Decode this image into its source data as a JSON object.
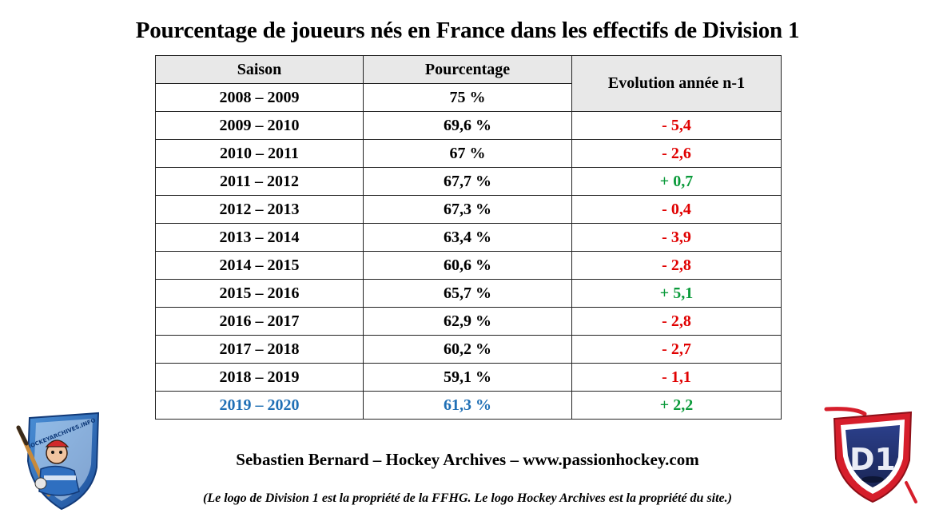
{
  "title": "Pourcentage de joueurs nés en France dans les effectifs de Division 1",
  "table": {
    "headers": {
      "season": "Saison",
      "percent": "Pourcentage",
      "evolution": "Evolution année n-1"
    },
    "rows": [
      {
        "season": "2008 – 2009",
        "percent": "75 %",
        "evolution": ""
      },
      {
        "season": "2009 – 2010",
        "percent": "69,6 %",
        "evolution": "- 5,4"
      },
      {
        "season": "2010 – 2011",
        "percent": "67 %",
        "evolution": "- 2,6"
      },
      {
        "season": "2011 – 2012",
        "percent": "67,7 %",
        "evolution": "+ 0,7"
      },
      {
        "season": "2012 – 2013",
        "percent": "67,3 %",
        "evolution": "- 0,4"
      },
      {
        "season": "2013 – 2014",
        "percent": "63,4 %",
        "evolution": "- 3,9"
      },
      {
        "season": "2014 – 2015",
        "percent": "60,6 %",
        "evolution": "- 2,8"
      },
      {
        "season": "2015 – 2016",
        "percent": "65,7 %",
        "evolution": "+ 5,1"
      },
      {
        "season": "2016 – 2017",
        "percent": "62,9 %",
        "evolution": "- 2,8"
      },
      {
        "season": "2017 – 2018",
        "percent": "60,2 %",
        "evolution": "- 2,7"
      },
      {
        "season": "2018 – 2019",
        "percent": "59,1 %",
        "evolution": "- 1,1"
      },
      {
        "season": "2019 – 2020",
        "percent": "61,3 %",
        "evolution": "+ 2,2"
      }
    ]
  },
  "credit": "Sebastien Bernard – Hockey Archives – www.passionhockey.com",
  "note": "(Le logo de Division 1 est la propriété de la FFHG. Le logo Hockey Archives est la propriété du site.)",
  "logos": {
    "left": {
      "icon": "hockey-archives-logo",
      "text": "HOCKEYARCHIVES.INFO"
    },
    "right": {
      "icon": "division-1-logo",
      "text": "D1"
    }
  },
  "colors": {
    "negative": "#e00000",
    "positive": "#0a9a3a",
    "highlight": "#1f6fb5",
    "header_bg": "#e8e8e8"
  }
}
